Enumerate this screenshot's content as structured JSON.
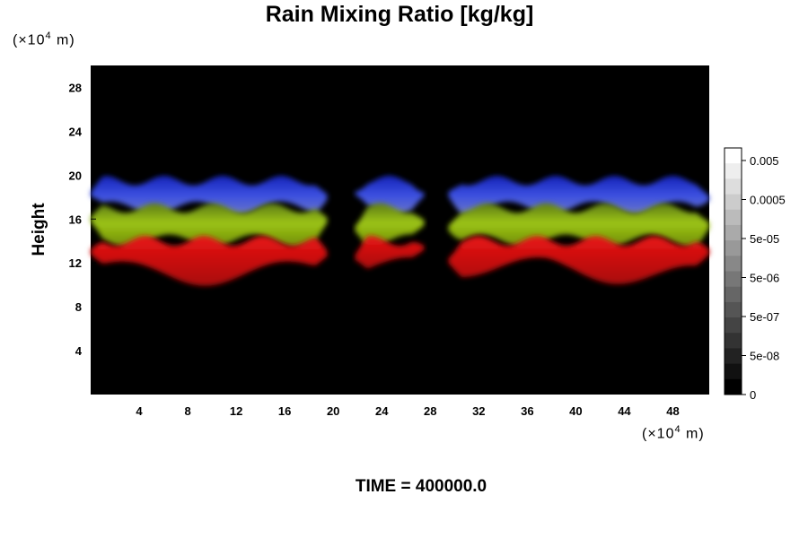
{
  "chart_data": {
    "type": "heatmap",
    "title": "Rain Mixing Ratio [kg/kg]",
    "ylabel": "Height",
    "xlabel": "",
    "x_unit": {
      "prefix": "(×10",
      "exp": "4",
      "suffix": " m)"
    },
    "y_unit": {
      "prefix": "(×10",
      "exp": "4",
      "suffix": " m)"
    },
    "xlim": [
      0,
      51
    ],
    "ylim": [
      0,
      30
    ],
    "x_ticks": [
      4,
      8,
      12,
      16,
      20,
      24,
      28,
      32,
      36,
      40,
      44,
      48
    ],
    "y_ticks": [
      4,
      8,
      12,
      16,
      20,
      24,
      28
    ],
    "background_color": "#000000",
    "colorbar": {
      "labels": [
        "0.005",
        "0.0005",
        "5e-05",
        "5e-06",
        "5e-07",
        "5e-08",
        "0"
      ]
    },
    "bands": [
      {
        "name": "upper",
        "color": "#1f2fd0",
        "top_km": 19.5,
        "bottom_km": 17.0
      },
      {
        "name": "middle",
        "color": "#8fb511",
        "top_km": 17.0,
        "bottom_km": 14.0
      },
      {
        "name": "lower",
        "color": "#d40b0b",
        "top_km": 14.0,
        "bottom_km": 11.0
      }
    ],
    "gaps_x": [
      [
        19.5,
        21.8
      ],
      [
        27.5,
        29.5
      ]
    ],
    "footer": "TIME = 400000.0"
  }
}
